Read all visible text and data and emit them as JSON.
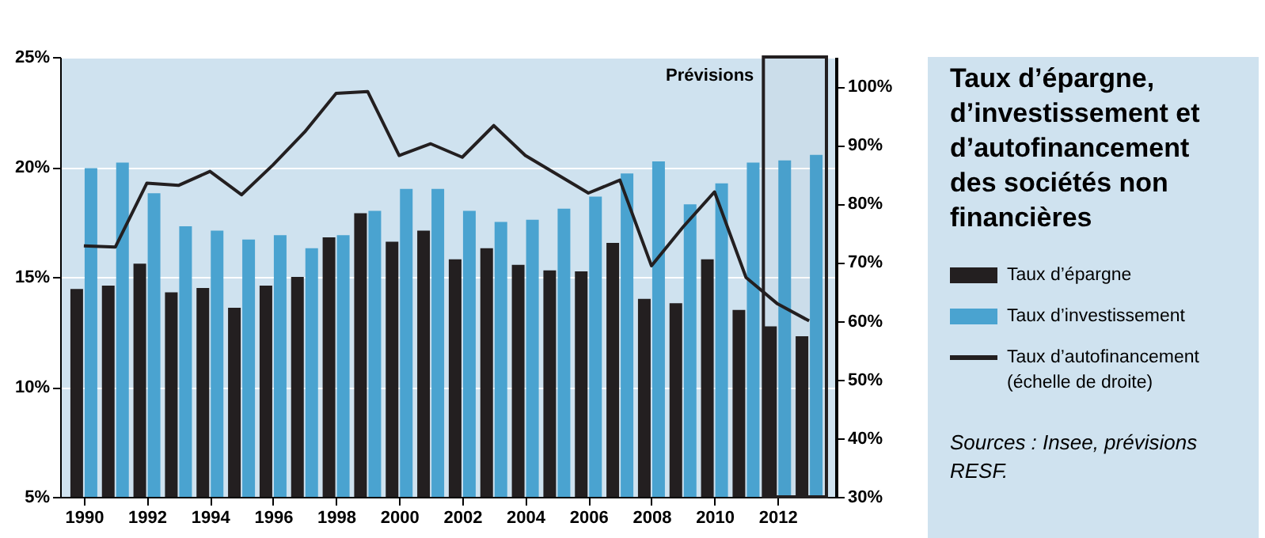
{
  "chart_data": {
    "type": "bar",
    "title": "Taux d’épargne, d’investissement et d’autofinancement des sociétés non financières",
    "x": [
      1990,
      1991,
      1992,
      1993,
      1994,
      1995,
      1996,
      1997,
      1998,
      1999,
      2000,
      2001,
      2002,
      2003,
      2004,
      2005,
      2006,
      2007,
      2008,
      2009,
      2010,
      2011,
      2012,
      2013
    ],
    "xlim": [
      1989.5,
      2013.6
    ],
    "xticks": [
      1990,
      1992,
      1994,
      1996,
      1998,
      2000,
      2002,
      2004,
      2006,
      2008,
      2010,
      2012
    ],
    "ylim": [
      5,
      25
    ],
    "yticks": [
      {
        "value": 5,
        "label": "5%"
      },
      {
        "value": 10,
        "label": "10%"
      },
      {
        "value": 15,
        "label": "15%"
      },
      {
        "value": 20,
        "label": "20%"
      },
      {
        "value": 25,
        "label": "25%"
      }
    ],
    "y2lim": [
      30,
      105
    ],
    "y2ticks": [
      {
        "value": 30,
        "label": "30%"
      },
      {
        "value": 40,
        "label": "40%"
      },
      {
        "value": 50,
        "label": "50%"
      },
      {
        "value": 60,
        "label": "60%"
      },
      {
        "value": 70,
        "label": "70%"
      },
      {
        "value": 80,
        "label": "80%"
      },
      {
        "value": 90,
        "label": "90%"
      },
      {
        "value": 100,
        "label": "100%"
      }
    ],
    "series": [
      {
        "name": "Taux d’épargne",
        "color": "#231f20",
        "values": [
          14.45,
          14.6,
          15.6,
          14.3,
          14.5,
          13.6,
          14.6,
          15.0,
          16.8,
          17.9,
          16.6,
          17.1,
          15.8,
          16.3,
          15.55,
          15.3,
          15.25,
          16.55,
          14.0,
          13.8,
          15.8,
          13.5,
          12.75,
          12.3
        ]
      },
      {
        "name": "Taux d’investissement",
        "color": "#4aa3d0",
        "values": [
          19.95,
          20.2,
          18.8,
          17.3,
          17.1,
          16.7,
          16.9,
          16.3,
          16.9,
          18.0,
          19.0,
          19.0,
          18.0,
          17.5,
          17.6,
          18.1,
          18.65,
          19.7,
          20.25,
          18.3,
          19.25,
          20.2,
          20.3,
          20.55
        ]
      },
      {
        "name": "Taux d’autofinancement (échelle de droite)",
        "color": "#231f20",
        "type": "line",
        "axis": "y2",
        "marker": "none",
        "values": [
          72.8,
          72.6,
          83.5,
          83.1,
          85.5,
          81.5,
          86.6,
          92.2,
          98.8,
          99.1,
          88.2,
          90.2,
          87.9,
          93.3,
          88.2,
          85.0,
          81.8,
          84.0,
          69.4,
          76.0,
          82.0,
          67.4,
          62.9,
          60.0
        ]
      }
    ],
    "bands": [
      {
        "axis": "x",
        "from": 2011.55,
        "to": 2013.55,
        "label": "Prévisions",
        "color": "#231f20"
      }
    ],
    "annotations": [
      "Sources : Insee, prévisions RESF."
    ],
    "grid": "y",
    "legend": "right"
  }
}
